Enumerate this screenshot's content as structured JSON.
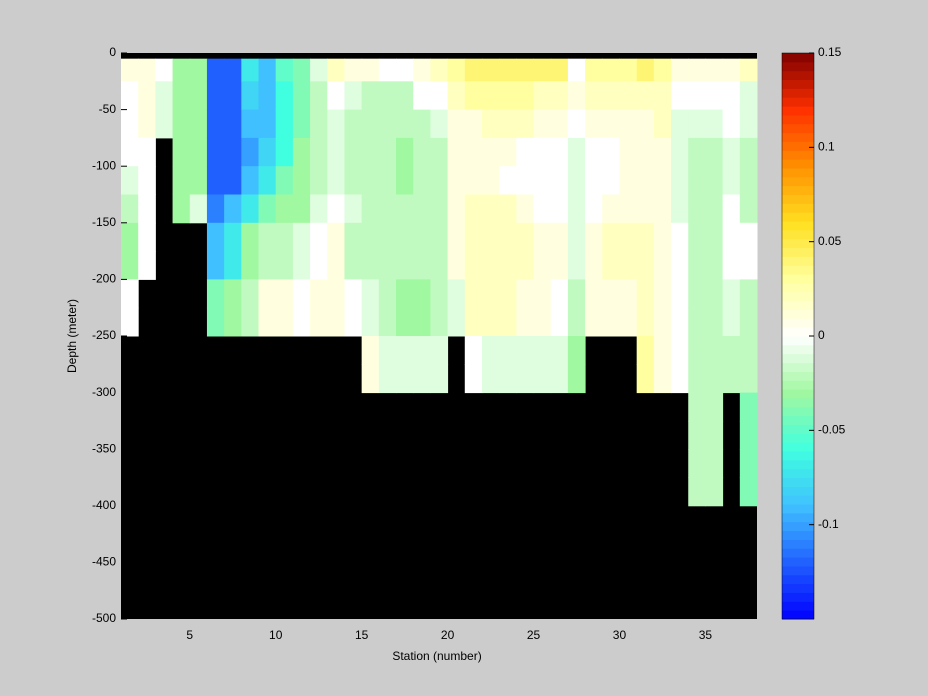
{
  "chart_data": {
    "type": "heatmap",
    "xlabel": "Station (number)",
    "ylabel": "Depth (meter)",
    "xlim": [
      1,
      38
    ],
    "ylim": [
      -500,
      0
    ],
    "xticks": [
      5,
      10,
      15,
      20,
      25,
      30,
      35
    ],
    "yticks": [
      0,
      -50,
      -100,
      -150,
      -200,
      -250,
      -300,
      -350,
      -400,
      -450,
      -500
    ],
    "x_edges": [
      1,
      2,
      3,
      4,
      5,
      6,
      7,
      8,
      9,
      10,
      11,
      12,
      13,
      14,
      15,
      16,
      17,
      18,
      19,
      20,
      21,
      22,
      23,
      24,
      25,
      26,
      27,
      28,
      29,
      30,
      31,
      32,
      33,
      34,
      35,
      36,
      37,
      38
    ],
    "y_edges": [
      -5,
      -25,
      -50,
      -75,
      -100,
      -125,
      -150,
      -175,
      -200,
      -225,
      -250,
      -275,
      -300,
      -325,
      -350,
      -375,
      -400
    ],
    "missing_color": "#000000",
    "clim": [
      -0.15,
      0.15
    ],
    "colorbar_ticks": [
      -0.1,
      -0.05,
      0,
      0.05,
      0.1,
      0.15
    ],
    "colormap": [
      "#0000ff",
      "#2060ff",
      "#40c0ff",
      "#40ffe0",
      "#a0f8a0",
      "#ffffff",
      "#ffffa0",
      "#ffe020",
      "#ff9000",
      "#ff3000",
      "#800000"
    ],
    "values": [
      [
        0.01,
        0,
        0,
        0,
        -0.01,
        -0.02,
        -0.03,
        -0.03,
        0,
        0
      ],
      [
        0.01,
        0.01,
        0.01,
        0,
        0,
        0,
        0,
        0
      ],
      [
        0,
        -0.01,
        -0.01
      ],
      [
        -0.03,
        -0.03,
        -0.03,
        -0.03,
        -0.03,
        -0.03
      ],
      [
        -0.03,
        -0.03,
        -0.03,
        -0.03,
        -0.03,
        -0.01
      ],
      [
        -0.12,
        -0.12,
        -0.12,
        -0.12,
        -0.12,
        -0.11,
        -0.09,
        -0.09,
        -0.04,
        -0.04
      ],
      [
        -0.12,
        -0.12,
        -0.12,
        -0.12,
        -0.12,
        -0.09,
        -0.07,
        -0.07,
        -0.03,
        -0.03
      ],
      [
        -0.07,
        -0.08,
        -0.09,
        -0.1,
        -0.09,
        -0.07,
        -0.03,
        -0.03,
        -0.02,
        -0.02
      ],
      [
        -0.09,
        -0.09,
        -0.09,
        -0.08,
        -0.07,
        -0.04,
        -0.02,
        -0.02,
        0.01,
        0.01
      ],
      [
        -0.05,
        -0.06,
        -0.06,
        -0.06,
        -0.04,
        -0.03,
        -0.02,
        -0.02,
        0.01,
        0.01
      ],
      [
        -0.04,
        -0.04,
        -0.04,
        -0.03,
        -0.03,
        -0.03,
        -0.01,
        -0.01,
        0,
        0
      ],
      [
        -0.01,
        -0.02,
        -0.02,
        -0.02,
        -0.02,
        -0.01,
        0,
        0,
        0.01,
        0.01
      ],
      [
        0.02,
        0,
        -0.01,
        -0.01,
        -0.01,
        0,
        0.01,
        0.01,
        0.01,
        0.01
      ],
      [
        0.01,
        -0.01,
        -0.02,
        -0.02,
        -0.02,
        -0.01,
        -0.02,
        -0.02,
        0,
        0
      ],
      [
        0.01,
        -0.02,
        -0.02,
        -0.02,
        -0.02,
        -0.02,
        -0.02,
        -0.02,
        -0.01,
        -0.01,
        0.01,
        0.01
      ],
      [
        0,
        -0.02,
        -0.02,
        -0.02,
        -0.02,
        -0.02,
        -0.02,
        -0.02,
        -0.02,
        -0.02,
        -0.01,
        -0.01
      ],
      [
        0,
        -0.02,
        -0.02,
        -0.03,
        -0.03,
        -0.02,
        -0.02,
        -0.02,
        -0.03,
        -0.03,
        -0.01,
        -0.01
      ],
      [
        0.01,
        0,
        -0.02,
        -0.02,
        -0.02,
        -0.02,
        -0.02,
        -0.02,
        -0.03,
        -0.03,
        -0.01,
        -0.01
      ],
      [
        0.02,
        0,
        -0.01,
        -0.02,
        -0.02,
        -0.02,
        -0.02,
        -0.02,
        -0.02,
        -0.02,
        -0.01,
        -0.01
      ],
      [
        0.03,
        0.02,
        0.01,
        0.01,
        0.01,
        0.01,
        0.01,
        0.01,
        -0.01,
        -0.01
      ],
      [
        0.04,
        0.03,
        0.01,
        0.01,
        0.01,
        0.02,
        0.02,
        0.02,
        0.02,
        0.02,
        0,
        0
      ],
      [
        0.04,
        0.03,
        0.02,
        0.01,
        0.01,
        0.02,
        0.02,
        0.02,
        0.02,
        0.02,
        -0.01,
        -0.01
      ],
      [
        0.04,
        0.03,
        0.02,
        0.01,
        0,
        0.02,
        0.02,
        0.02,
        0.02,
        0.02,
        -0.01,
        -0.01
      ],
      [
        0.04,
        0.03,
        0.02,
        0,
        0,
        0.01,
        0.02,
        0.02,
        0.01,
        0.01,
        -0.01,
        -0.01
      ],
      [
        0.04,
        0.02,
        0.01,
        0,
        0,
        0,
        0.01,
        0.01,
        0.01,
        0.01,
        -0.01,
        -0.01
      ],
      [
        0.04,
        0.02,
        0.01,
        0,
        0,
        0,
        0.01,
        0.01,
        0,
        0,
        -0.01,
        -0.01
      ],
      [
        0,
        0.01,
        0,
        -0.01,
        -0.01,
        -0.01,
        -0.01,
        -0.01,
        -0.02,
        -0.02,
        -0.03,
        -0.03
      ],
      [
        0.03,
        0.02,
        0.01,
        0,
        0,
        0,
        0.01,
        0.01,
        0.01,
        0.01
      ],
      [
        0.03,
        0.02,
        0.01,
        0,
        0,
        0.01,
        0.02,
        0.02,
        0.01,
        0.01
      ],
      [
        0.03,
        0.02,
        0.01,
        0.01,
        0.01,
        0.01,
        0.02,
        0.02,
        0.01,
        0.01
      ],
      [
        0.04,
        0.02,
        0.01,
        0.01,
        0.01,
        0.01,
        0.02,
        0.02,
        0.02,
        0.02,
        0.03,
        0.03
      ],
      [
        0.03,
        0.02,
        0.02,
        0.01,
        0.01,
        0.01,
        0.01,
        0.01,
        0.01,
        0.01,
        0.01,
        0.01
      ],
      [
        0.01,
        0,
        -0.01,
        -0.01,
        -0.01,
        -0.01,
        0,
        0,
        0,
        0,
        0,
        0
      ],
      [
        0.01,
        0,
        -0.01,
        -0.02,
        -0.02,
        -0.02,
        -0.02,
        -0.02,
        -0.02,
        -0.02,
        -0.02,
        -0.02,
        -0.02,
        -0.02,
        -0.02,
        -0.02
      ],
      [
        0.01,
        0,
        -0.01,
        -0.02,
        -0.02,
        -0.02,
        -0.02,
        -0.02,
        -0.02,
        -0.02,
        -0.02,
        -0.02,
        -0.02,
        -0.02,
        -0.02,
        -0.02
      ],
      [
        0.01,
        0,
        0,
        -0.01,
        -0.01,
        0,
        0,
        0,
        -0.01,
        -0.01,
        -0.02,
        -0.02
      ],
      [
        0.02,
        -0.01,
        -0.01,
        -0.02,
        -0.02,
        -0.02,
        0,
        0,
        -0.02,
        -0.02,
        -0.02,
        -0.02,
        -0.04,
        -0.04,
        -0.04,
        -0.04
      ]
    ]
  }
}
